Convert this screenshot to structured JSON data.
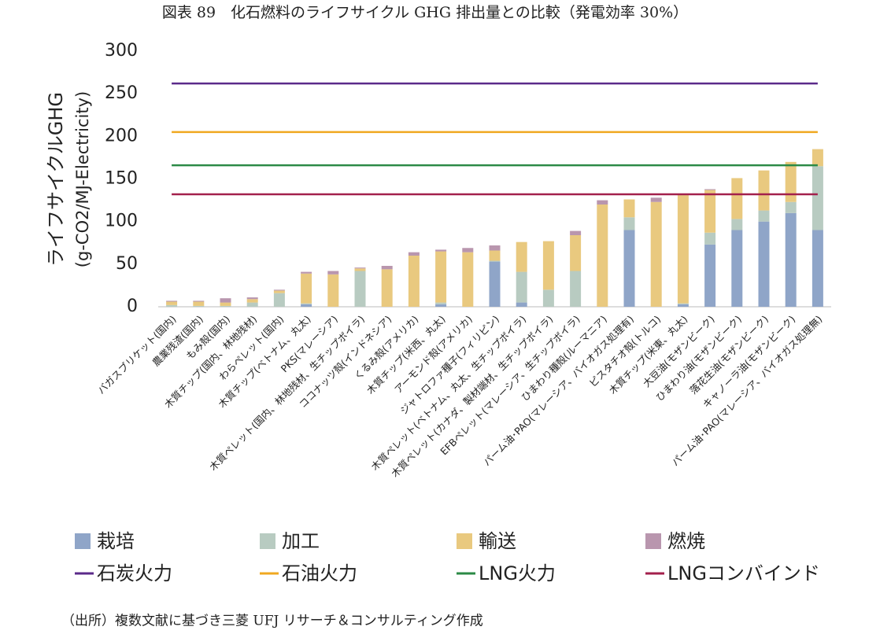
{
  "chart_data": {
    "type": "stacked_bar",
    "title": "図表 89　化石燃料のライフサイクル GHG 排出量との比較（発電効率 30%）",
    "y_label": [
      "ライフサイクルGHG",
      "(g-CO2/MJ-Electricity)"
    ],
    "source": "（出所）複数文献に基づき三菱 UFJ リサーチ＆コンサルティング作成",
    "categories": [
      "バガスブリケット(国内)",
      "農業残渣(国内)",
      "もみ殻(国内)",
      "木質チップ(国内、林地残材)",
      "わらペレット(国内)",
      "木質チップ(ベトナム、丸太)",
      "PKS(マレーシア)",
      "木質ペレット(国内、林地残材、生チップボイラ)",
      "ココナッツ殻(インドネシア)",
      "くるみ殻(アメリカ)",
      "木質チップ(米西、丸太)",
      "アーモンド殻(アメリカ)",
      "ジャトロファ種子(フィリピン)",
      "木質ペレット(ベトナム、丸太、生チップボイラ)",
      "木質ペレット(カナダ、製材端材、生チップボイラ)",
      "EFBペレット(マレーシア、生チップボイラ)",
      "ひまわり種殻(ルーマニア)",
      "パーム油･PAO(マレーシア、バイオガス処理有)",
      "ピスタチオ殻(トルコ)",
      "木質チップ(米東、丸太)",
      "大豆油(モザンビーク)",
      "ひまわり油(モザンビーク)",
      "落花生油(モザンビーク)",
      "キャノーラ油(モザンビーク)",
      "パーム油･PAO(マレーシア、バイオガス処理無)"
    ],
    "series": [
      {
        "name": "栽培",
        "color": "#8fa5c8",
        "values": [
          0,
          0,
          0,
          0,
          0,
          3,
          0,
          0,
          0,
          0,
          3,
          0,
          53,
          5,
          0,
          0,
          0,
          90,
          0,
          3,
          73,
          90,
          100,
          110,
          90
        ]
      },
      {
        "name": "加工",
        "color": "#b8cbc1",
        "values": [
          2,
          1,
          1,
          5,
          16,
          1,
          0,
          42,
          0,
          0,
          2,
          0,
          1,
          36,
          20,
          42,
          0,
          15,
          0,
          1,
          14,
          13,
          13,
          13,
          75
        ]
      },
      {
        "name": "輸送",
        "color": "#e9c97f",
        "values": [
          4,
          5,
          4,
          4,
          3,
          35,
          38,
          3,
          44,
          60,
          60,
          64,
          12,
          35,
          57,
          42,
          120,
          21,
          123,
          127,
          50,
          48,
          47,
          47,
          20
        ]
      },
      {
        "name": "燃焼",
        "color": "#b996ae",
        "values": [
          1,
          1,
          5,
          2,
          1,
          2,
          4,
          1,
          4,
          4,
          2,
          5,
          6,
          0,
          0,
          5,
          5,
          0,
          5,
          0,
          1,
          0,
          0,
          0,
          0
        ]
      }
    ],
    "lines": [
      {
        "name": "石炭火力",
        "color": "#5b2a8a",
        "value": 262
      },
      {
        "name": "石油火力",
        "color": "#f0a820",
        "value": 205
      },
      {
        "name": "LNG火力",
        "color": "#2b8a46",
        "value": 166
      },
      {
        "name": "LNGコンバインド",
        "color": "#a3204c",
        "value": 132
      }
    ],
    "ylim": [
      0,
      300
    ],
    "yticks": [
      0,
      50,
      100,
      150,
      200,
      250,
      300
    ]
  }
}
